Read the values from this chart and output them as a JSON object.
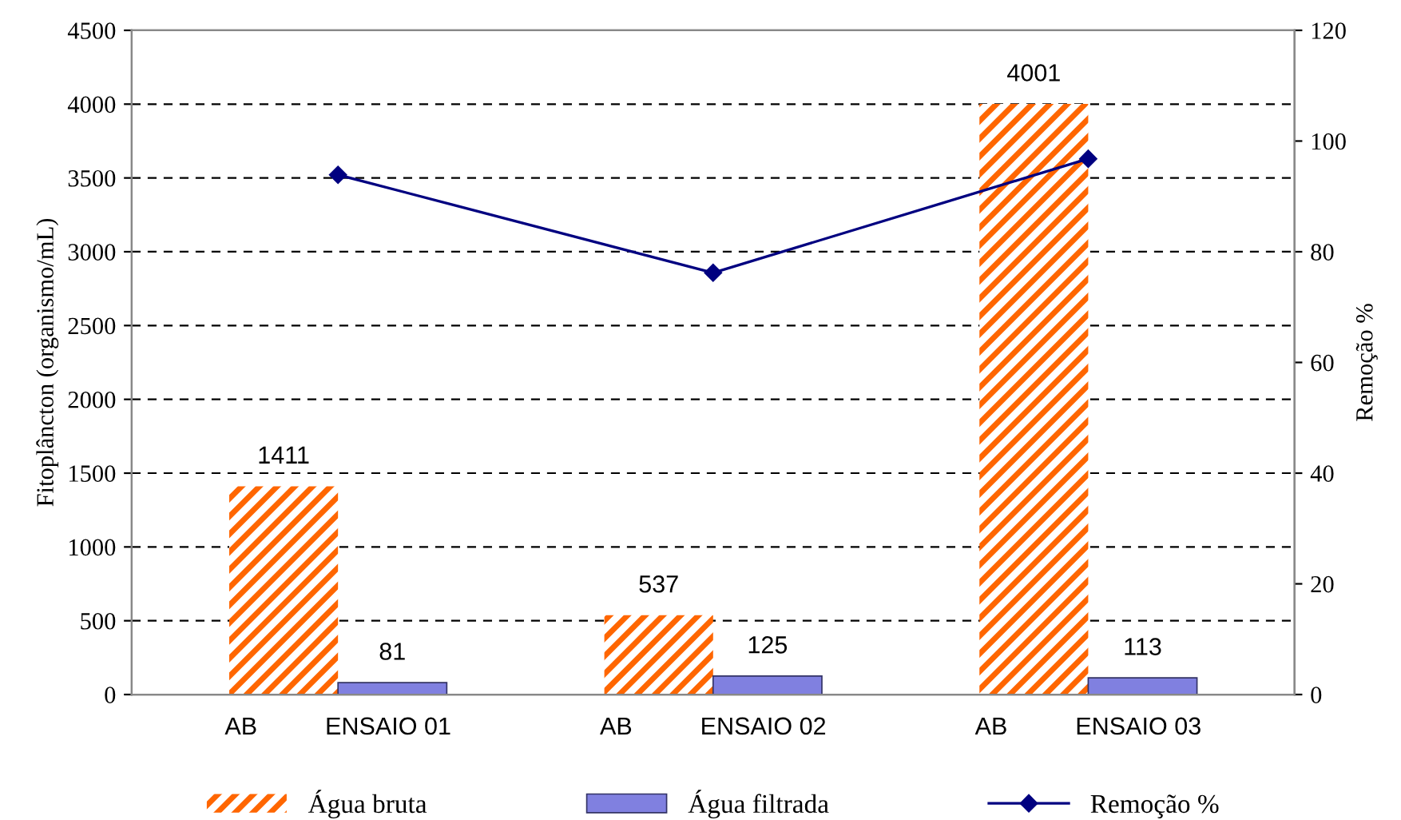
{
  "chart_data": {
    "type": "bar",
    "categories": [
      "AB          ENSAIO 01",
      "AB          ENSAIO 02",
      "AB          ENSAIO 03"
    ],
    "ylabel": "Fitoplâncton (organismo/mL)",
    "y2label": "Remoção %",
    "ylim": [
      0,
      4500
    ],
    "yticks": [
      0,
      500,
      1000,
      1500,
      2000,
      2500,
      3000,
      3500,
      4000,
      4500
    ],
    "y2lim": [
      0,
      120
    ],
    "y2ticks": [
      0,
      20,
      40,
      60,
      80,
      100,
      120
    ],
    "grid": "y",
    "legend": "bottom",
    "series": [
      {
        "name": "Água bruta",
        "color": "#ff6600",
        "values": [
          1411,
          537,
          4001
        ],
        "value_labels": [
          "1411",
          "537",
          "4001"
        ]
      },
      {
        "name": "Água filtrada",
        "color": "#8080e0",
        "values": [
          81,
          125,
          113
        ],
        "value_labels": [
          "81",
          "125",
          "113"
        ]
      },
      {
        "name": "Remoção %",
        "type": "line",
        "axis": "y2",
        "color": "#000080",
        "marker": "diamond",
        "line_style": "solid",
        "values": [
          93.9,
          76.2,
          96.8
        ]
      }
    ]
  }
}
